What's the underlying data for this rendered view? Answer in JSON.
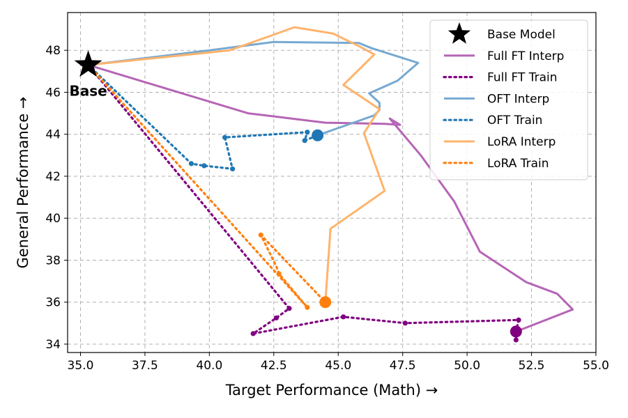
{
  "chart_data": {
    "type": "line",
    "xlabel": "Target Performance (Math) →",
    "ylabel": "General Performance →",
    "xlim": [
      34.5,
      55.0
    ],
    "ylim": [
      33.6,
      49.8
    ],
    "xticks": [
      "35.0",
      "37.5",
      "40.0",
      "42.5",
      "45.0",
      "47.5",
      "50.0",
      "52.5",
      "55.0"
    ],
    "yticks": [
      "34",
      "36",
      "38",
      "40",
      "42",
      "44",
      "46",
      "48"
    ],
    "grid": true,
    "legend_position": "top-right",
    "colors": {
      "full_ft_interp": "#b565b5",
      "full_ft_train": "#800080",
      "oft_interp": "#77a9d1",
      "oft_train": "#1f77b4",
      "lora_interp": "#ffb36b",
      "lora_train": "#ff7f0e"
    },
    "base": {
      "name": "Base Model",
      "label": "Base",
      "x": 35.3,
      "y": 47.3
    },
    "series": [
      {
        "name": "Full FT Interp",
        "style": "solid",
        "color_key": "full_ft_interp",
        "points": [
          [
            35.3,
            47.3
          ],
          [
            41.5,
            45.0
          ],
          [
            44.5,
            44.55
          ],
          [
            46.8,
            44.5
          ],
          [
            47.4,
            44.45
          ],
          [
            47.0,
            44.75
          ],
          [
            48.2,
            43.0
          ],
          [
            49.5,
            40.8
          ],
          [
            50.5,
            38.4
          ],
          [
            52.3,
            36.95
          ],
          [
            53.5,
            36.4
          ],
          [
            54.1,
            35.65
          ],
          [
            51.9,
            34.6
          ]
        ]
      },
      {
        "name": "Full FT Train",
        "style": "dotted",
        "color_key": "full_ft_train",
        "points": [
          [
            35.3,
            47.3
          ],
          [
            43.1,
            35.7
          ],
          [
            42.6,
            35.25
          ],
          [
            41.7,
            34.5
          ],
          [
            45.2,
            35.3
          ],
          [
            47.6,
            35.0
          ],
          [
            52.0,
            35.15
          ],
          [
            51.9,
            34.6
          ],
          [
            51.9,
            34.2
          ]
        ],
        "markers": [
          [
            43.1,
            35.7
          ],
          [
            42.6,
            35.25
          ],
          [
            41.7,
            34.5
          ],
          [
            45.2,
            35.3
          ],
          [
            47.6,
            35.0
          ],
          [
            52.0,
            35.15
          ],
          [
            51.9,
            34.2
          ]
        ],
        "final": [
          51.9,
          34.6
        ]
      },
      {
        "name": "OFT Interp",
        "style": "solid",
        "color_key": "oft_interp",
        "points": [
          [
            35.3,
            47.3
          ],
          [
            40.0,
            48.0
          ],
          [
            42.5,
            48.4
          ],
          [
            45.8,
            48.35
          ],
          [
            46.3,
            48.1
          ],
          [
            48.1,
            47.4
          ],
          [
            47.3,
            46.55
          ],
          [
            46.2,
            45.95
          ],
          [
            46.6,
            45.5
          ],
          [
            46.6,
            45.15
          ],
          [
            46.4,
            44.9
          ],
          [
            44.2,
            43.95
          ]
        ]
      },
      {
        "name": "OFT Train",
        "style": "dotted",
        "color_key": "oft_train",
        "points": [
          [
            35.3,
            47.3
          ],
          [
            39.3,
            42.6
          ],
          [
            39.8,
            42.5
          ],
          [
            40.9,
            42.35
          ],
          [
            40.6,
            43.85
          ],
          [
            43.8,
            44.1
          ],
          [
            43.7,
            43.7
          ],
          [
            44.2,
            43.95
          ]
        ],
        "markers": [
          [
            39.3,
            42.6
          ],
          [
            39.8,
            42.5
          ],
          [
            40.9,
            42.35
          ],
          [
            40.6,
            43.85
          ],
          [
            43.8,
            44.1
          ],
          [
            43.7,
            43.7
          ]
        ],
        "final": [
          44.2,
          43.95
        ]
      },
      {
        "name": "LoRA Interp",
        "style": "solid",
        "color_key": "lora_interp",
        "points": [
          [
            35.3,
            47.3
          ],
          [
            40.8,
            48.0
          ],
          [
            43.3,
            49.1
          ],
          [
            44.8,
            48.8
          ],
          [
            45.8,
            48.2
          ],
          [
            46.4,
            47.8
          ],
          [
            45.2,
            46.35
          ],
          [
            46.6,
            45.2
          ],
          [
            46.0,
            44.05
          ],
          [
            46.8,
            41.3
          ],
          [
            44.7,
            39.5
          ],
          [
            44.5,
            36.0
          ]
        ]
      },
      {
        "name": "LoRA Train",
        "style": "dotted",
        "color_key": "lora_train",
        "points": [
          [
            35.3,
            47.3
          ],
          [
            43.8,
            35.75
          ],
          [
            42.7,
            37.35
          ],
          [
            42.6,
            37.7
          ],
          [
            42.0,
            39.2
          ],
          [
            44.5,
            36.0
          ]
        ],
        "markers": [
          [
            43.8,
            35.75
          ],
          [
            42.7,
            37.35
          ],
          [
            42.0,
            39.2
          ]
        ],
        "final": [
          44.5,
          36.0
        ]
      }
    ],
    "legend": [
      "Base Model",
      "Full FT Interp",
      "Full FT Train",
      "OFT Interp",
      "OFT Train",
      "LoRA Interp",
      "LoRA Train"
    ]
  }
}
